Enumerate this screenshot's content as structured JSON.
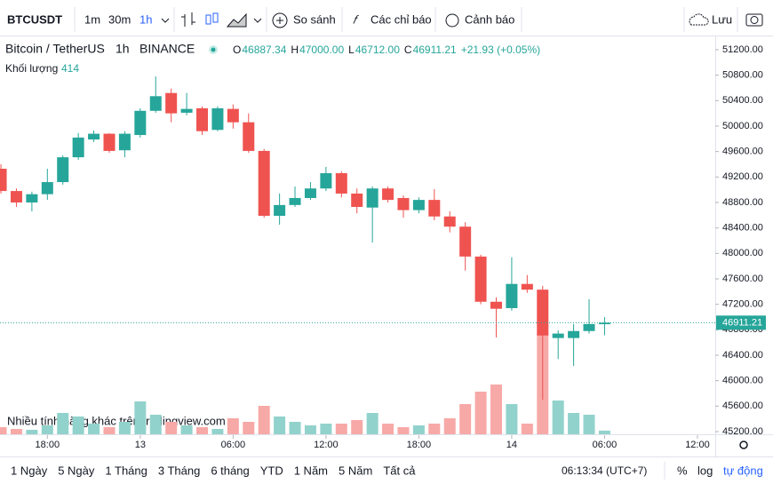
{
  "toolbar": {
    "symbol": "BTCUSDT",
    "intervals": [
      "1m",
      "30m",
      "1h"
    ],
    "compare": "So sánh",
    "indicators": "Các chỉ báo",
    "alerts": "Cảnh báo",
    "save": "Lưu"
  },
  "chart_data": {
    "type": "candlestick",
    "title": "Bitcoin / TetherUS",
    "interval": "1h",
    "exchange": "BINANCE",
    "ohlc_legend": [
      {
        "key": "O",
        "value": "46887.34"
      },
      {
        "key": "H",
        "value": "47000.00"
      },
      {
        "key": "L",
        "value": "46712.00"
      },
      {
        "key": "C",
        "value": "46911.21"
      }
    ],
    "change": "+21.93 (+0.05%)",
    "volume_title": "Khối lượng",
    "open": [
      49330,
      48980,
      48800,
      48930,
      49120,
      49510,
      49790,
      49880,
      49620,
      49860,
      50240,
      50520,
      50210,
      50280,
      49940,
      50270,
      50060,
      49610,
      48590,
      48760,
      48870,
      49020,
      49260,
      48940,
      48720,
      49020,
      48870,
      48680,
      48840,
      48580,
      48420,
      47950,
      47240,
      47140,
      47520,
      47430,
      46670,
      46670,
      46780,
      46887.34
    ],
    "high": [
      49400,
      49020,
      48970,
      49330,
      49540,
      49890,
      49930,
      49890,
      49920,
      50280,
      50780,
      50590,
      50520,
      50310,
      50310,
      50340,
      50200,
      49640,
      48940,
      49050,
      49120,
      49360,
      49290,
      49020,
      49050,
      49050,
      48910,
      48880,
      49010,
      48660,
      48490,
      47980,
      47310,
      47940,
      47660,
      47490,
      46790,
      46890,
      47280,
      47000
    ],
    "low": [
      48940,
      48730,
      48660,
      48840,
      49080,
      49470,
      49750,
      49580,
      49510,
      49820,
      50210,
      50060,
      50170,
      49860,
      49920,
      49960,
      49580,
      48560,
      48450,
      48730,
      48840,
      48980,
      48880,
      48630,
      48170,
      48800,
      48560,
      48630,
      48520,
      48330,
      47730,
      47200,
      46680,
      47100,
      47380,
      45700,
      46340,
      46230,
      46740,
      46712
    ],
    "close": [
      48980,
      48800,
      48930,
      49120,
      49510,
      49820,
      49880,
      49610,
      49880,
      50240,
      50470,
      50200,
      50270,
      49920,
      50280,
      50060,
      49610,
      48590,
      48760,
      48870,
      49020,
      49260,
      48940,
      48730,
      49020,
      48840,
      48680,
      48840,
      48580,
      48420,
      47950,
      47240,
      47130,
      47520,
      47430,
      46710,
      46740,
      46780,
      46890,
      46911.21
    ],
    "volume": [
      800,
      600,
      500,
      1000,
      2400,
      2000,
      1200,
      800,
      1400,
      3700,
      2200,
      1400,
      1000,
      800,
      600,
      1800,
      1400,
      3200,
      2000,
      1400,
      1000,
      1200,
      1200,
      1600,
      2400,
      1200,
      800,
      1000,
      1200,
      1800,
      3400,
      4800,
      5600,
      3400,
      1200,
      11400,
      3800,
      2400,
      2200,
      414
    ],
    "vlim": [
      0,
      12000
    ],
    "up_color": "#26a69a",
    "down_color": "#ef5350",
    "up_volume_color": "#92d2cc",
    "down_volume_color": "#f7a9a7",
    "last_price_line": true,
    "ylim": [
      45144,
      51423
    ],
    "yticks": [
      {
        "value": 45200,
        "label": "45200.00"
      },
      {
        "value": 45600,
        "label": "45600.00"
      },
      {
        "value": 46000,
        "label": "46000.00"
      },
      {
        "value": 46400,
        "label": "46400.00"
      },
      {
        "value": 46800,
        "label": "46800.00"
      },
      {
        "value": 47200,
        "label": "47200.00"
      },
      {
        "value": 47600,
        "label": "47600.00"
      },
      {
        "value": 48000,
        "label": "48000.00"
      },
      {
        "value": 48400,
        "label": "48400.00"
      },
      {
        "value": 48800,
        "label": "48800.00"
      },
      {
        "value": 49200,
        "label": "49200.00"
      },
      {
        "value": 49600,
        "label": "49600.00"
      },
      {
        "value": 50000,
        "label": "50000.00"
      },
      {
        "value": 50400,
        "label": "50400.00"
      },
      {
        "value": 50800,
        "label": "50800.00"
      },
      {
        "value": 51200,
        "label": "51200.00"
      }
    ],
    "xlim": [
      -0.06,
      46.15
    ],
    "xticks": [
      {
        "value": 3,
        "label": "18:00"
      },
      {
        "value": 9,
        "label": "13"
      },
      {
        "value": 15,
        "label": "06:00"
      },
      {
        "value": 21,
        "label": "12:00"
      },
      {
        "value": 27,
        "label": "18:00"
      },
      {
        "value": 33,
        "label": "14"
      },
      {
        "value": 39,
        "label": "06:00"
      },
      {
        "value": 45,
        "label": "12:00"
      }
    ],
    "watermark": "Nhiều tính năng khác trên tradingview.com"
  },
  "bottom_bar": {
    "ranges": [
      "1 Ngày",
      "5 Ngày",
      "1 Tháng",
      "3 Tháng",
      "6 tháng",
      "YTD",
      "1 Năm",
      "5 Năm",
      "Tất cả"
    ],
    "clock": "06:13:34 (UTC+7)",
    "percent": "%",
    "log": "log",
    "auto": "tự động"
  }
}
